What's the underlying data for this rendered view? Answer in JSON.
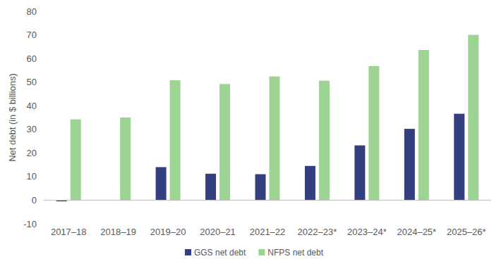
{
  "chart_data": {
    "type": "bar",
    "y_label": "Net debt (in $ billions)",
    "categories": [
      "2017–18",
      "2018–19",
      "2019–20",
      "2020–21",
      "2021–22",
      "2022–23*",
      "2023–24*",
      "2024–25*",
      "2025–26*"
    ],
    "series": [
      {
        "name": "GGS net debt",
        "color": "#333f7f",
        "values": [
          -0.5,
          0,
          14,
          11.2,
          11,
          14.5,
          23.2,
          30.2,
          36.6
        ]
      },
      {
        "name": "NFPS net debt",
        "color": "#9dd393",
        "values": [
          34.2,
          35,
          50.8,
          49.2,
          52.4,
          50.6,
          56.8,
          63.6,
          70
        ]
      }
    ],
    "ylim": [
      -10,
      80
    ],
    "yticks": [
      -10,
      0,
      10,
      20,
      30,
      40,
      50,
      60,
      70,
      80
    ],
    "grid": false,
    "legend": "bottom"
  }
}
